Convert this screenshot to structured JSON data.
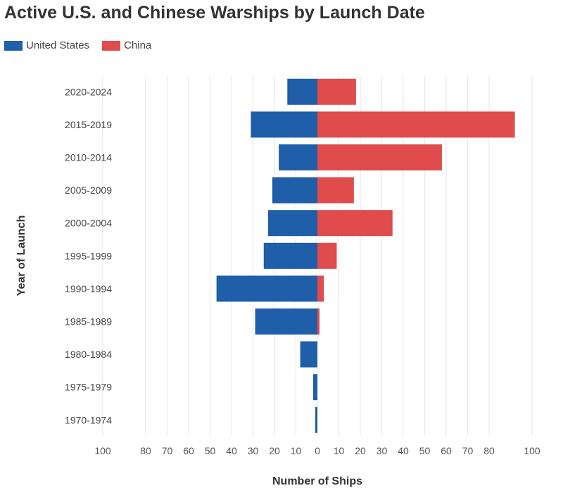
{
  "chart_data": {
    "type": "bar",
    "orientation": "horizontal-diverging",
    "title": "Active U.S. and Chinese Warships by Launch Date",
    "xlabel": "Number of Ships",
    "ylabel": "Year of Launch",
    "xlim": [
      -100,
      100
    ],
    "x_ticks": [
      "100",
      "80",
      "70",
      "60",
      "50",
      "40",
      "30",
      "20",
      "10",
      "0",
      "10",
      "20",
      "30",
      "40",
      "50",
      "60",
      "70",
      "80",
      "100"
    ],
    "grid": true,
    "legend_position": "top-left",
    "categories": [
      "2020-2024",
      "2015-2019",
      "2010-2014",
      "2005-2009",
      "2000-2004",
      "1995-1999",
      "1990-1994",
      "1985-1989",
      "1980-1984",
      "1975-1979",
      "1970-1974"
    ],
    "series": [
      {
        "name": "United States",
        "color": "#1f5ea8",
        "side": "left",
        "values": [
          14,
          31,
          18,
          21,
          23,
          25,
          47,
          29,
          8,
          2,
          1
        ]
      },
      {
        "name": "China",
        "color": "#e04b4b",
        "side": "right",
        "values": [
          18,
          92,
          58,
          17,
          35,
          9,
          3,
          1,
          0,
          0,
          0
        ]
      }
    ]
  }
}
